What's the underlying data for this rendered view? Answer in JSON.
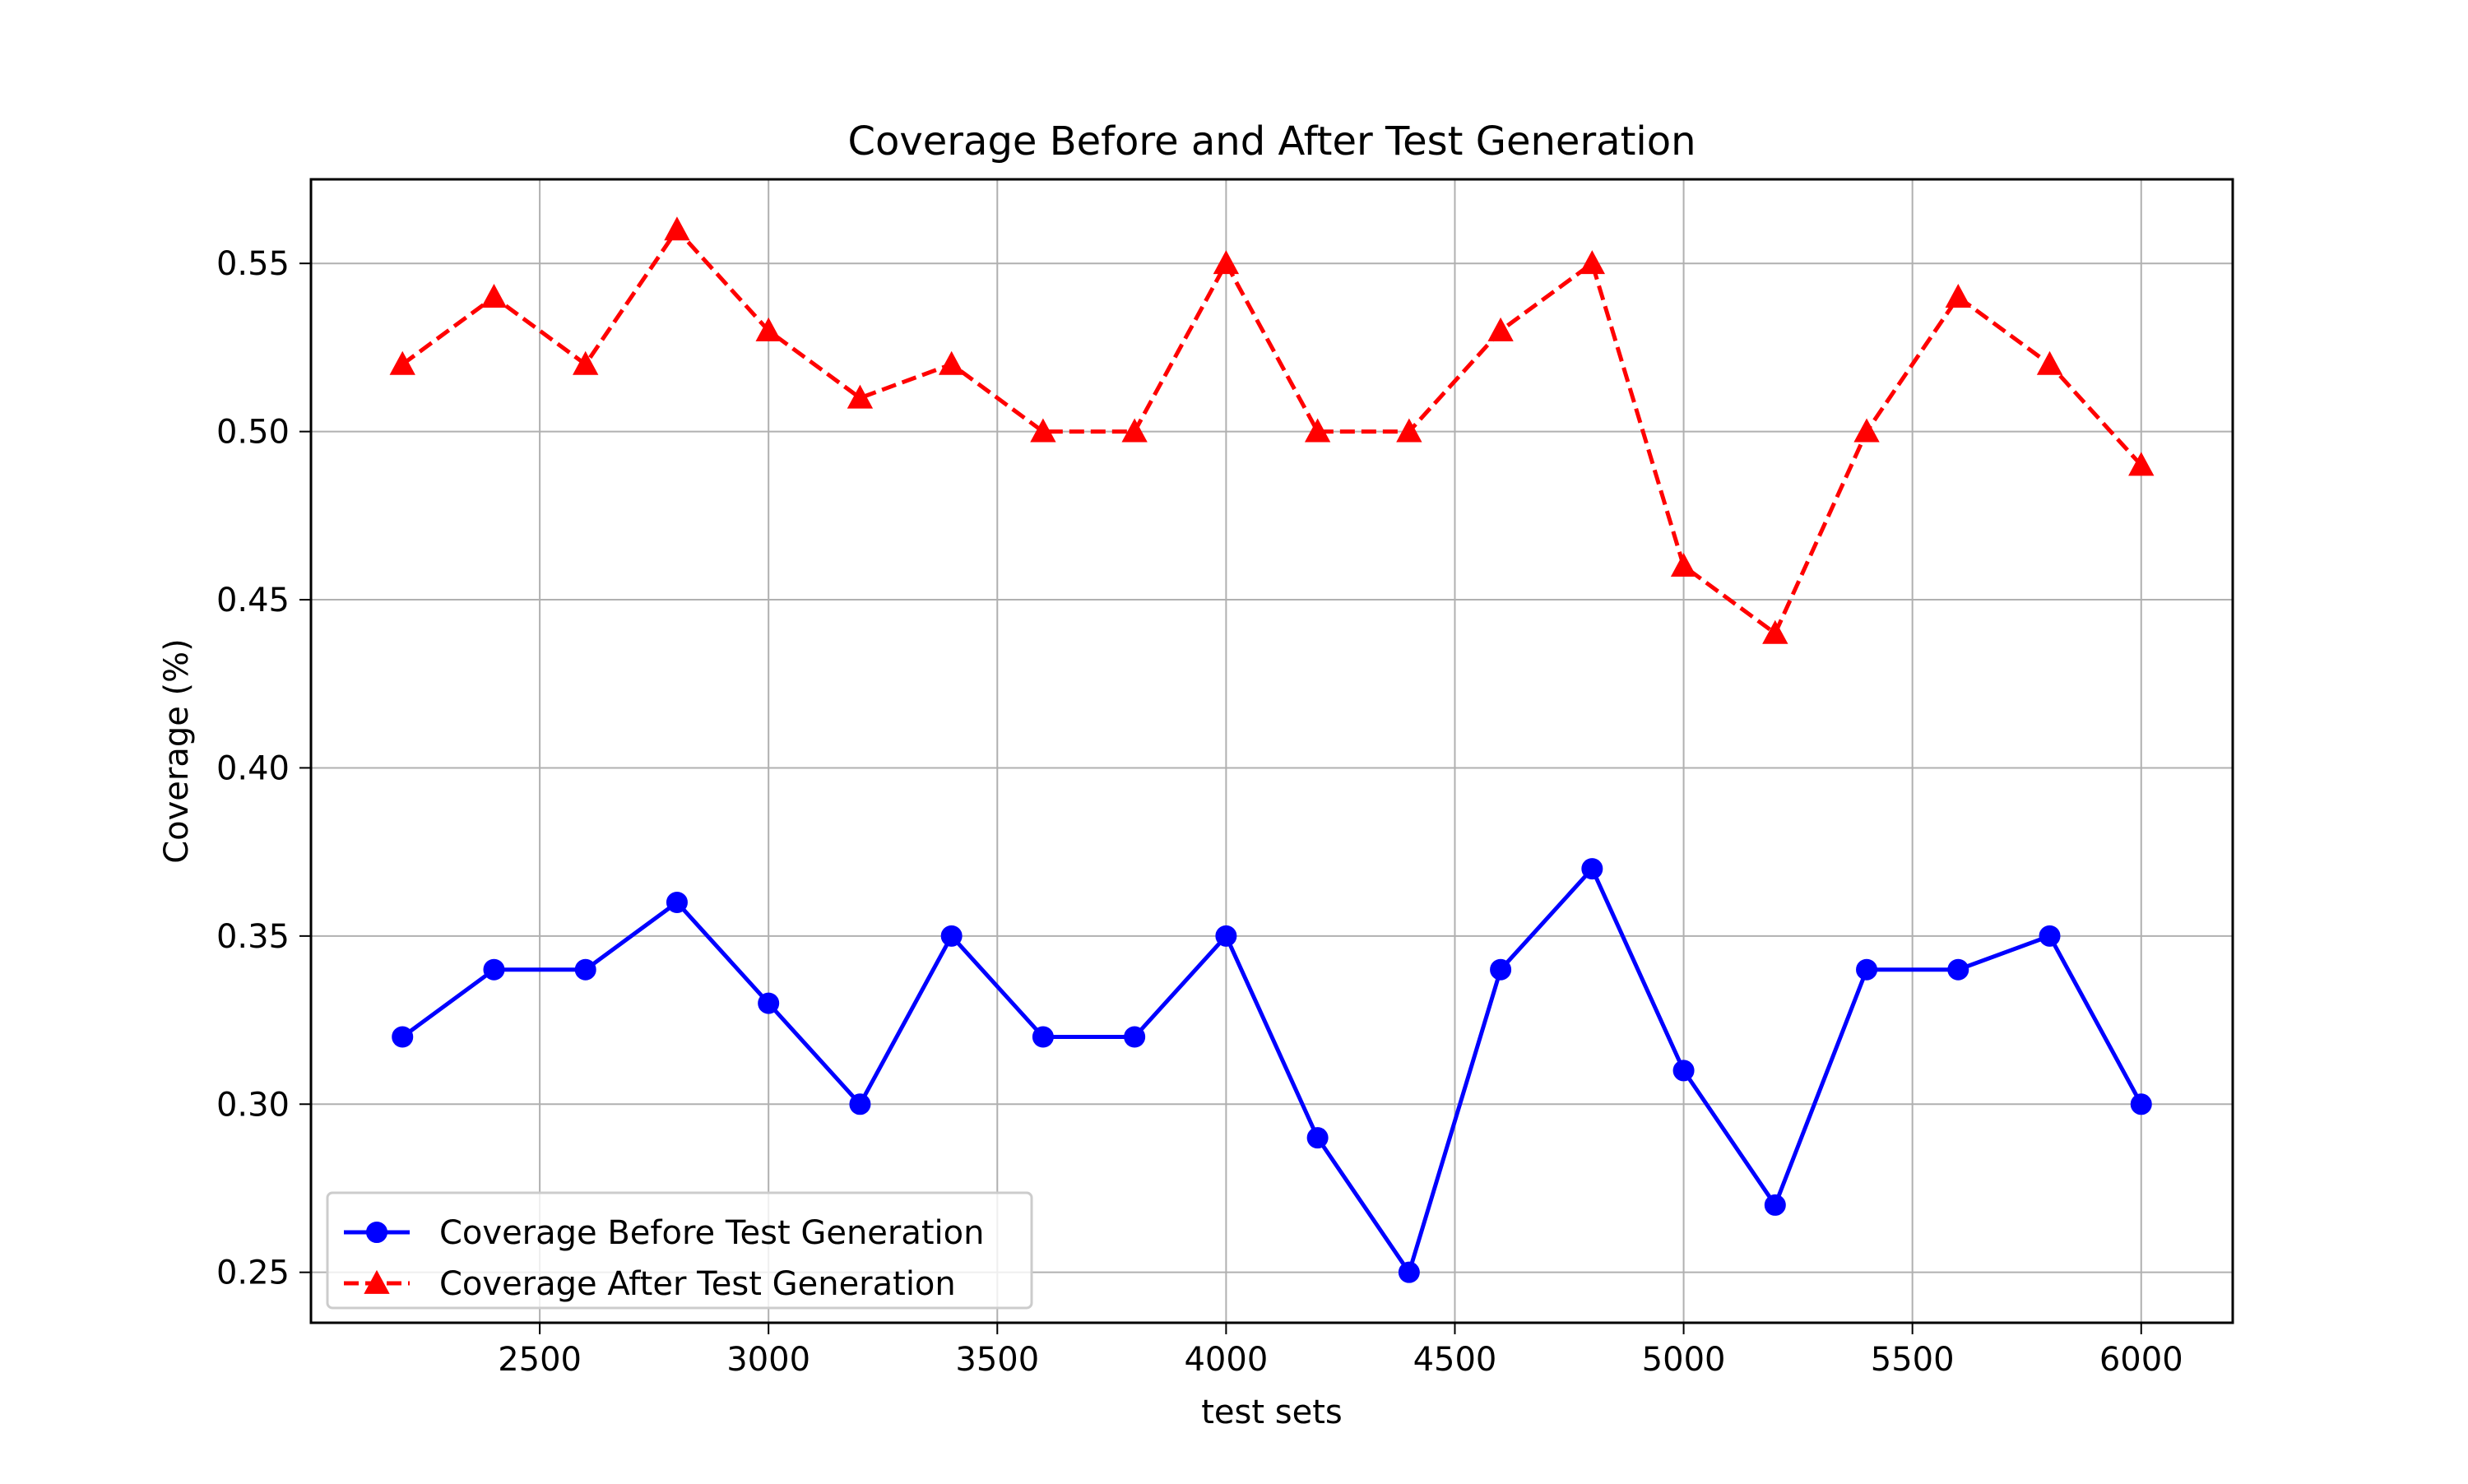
{
  "chart_data": {
    "type": "line",
    "title": "Coverage Before and After Test Generation",
    "xlabel": "test sets",
    "ylabel": "Coverage (%)",
    "xlim": [
      2000,
      6200
    ],
    "ylim": [
      0.235,
      0.575
    ],
    "x": [
      2200,
      2400,
      2600,
      2800,
      3000,
      3200,
      3400,
      3600,
      3800,
      4000,
      4200,
      4400,
      4600,
      4800,
      5000,
      5200,
      5400,
      5600,
      5800,
      6000
    ],
    "xticks": [
      2500,
      3000,
      3500,
      4000,
      4500,
      5000,
      5500,
      6000
    ],
    "xtick_labels": [
      "2500",
      "3000",
      "3500",
      "4000",
      "4500",
      "5000",
      "5500",
      "6000"
    ],
    "yticks": [
      0.25,
      0.3,
      0.35,
      0.4,
      0.45,
      0.5,
      0.55
    ],
    "ytick_labels": [
      "0.25",
      "0.30",
      "0.35",
      "0.40",
      "0.45",
      "0.50",
      "0.55"
    ],
    "grid": true,
    "legend_position": "lower-left",
    "series": [
      {
        "name": "Coverage Before Test Generation",
        "color": "#0000ff",
        "line_style": "solid",
        "marker": "circle",
        "values": [
          0.32,
          0.34,
          0.34,
          0.36,
          0.33,
          0.3,
          0.35,
          0.32,
          0.32,
          0.35,
          0.29,
          0.25,
          0.34,
          0.37,
          0.31,
          0.27,
          0.34,
          0.34,
          0.35,
          0.3
        ]
      },
      {
        "name": "Coverage After Test Generation",
        "color": "#ff0000",
        "line_style": "dashed",
        "marker": "triangle",
        "values": [
          0.52,
          0.54,
          0.52,
          0.56,
          0.53,
          0.51,
          0.52,
          0.5,
          0.5,
          0.55,
          0.5,
          0.5,
          0.53,
          0.55,
          0.46,
          0.44,
          0.5,
          0.54,
          0.52,
          0.49
        ]
      }
    ]
  }
}
